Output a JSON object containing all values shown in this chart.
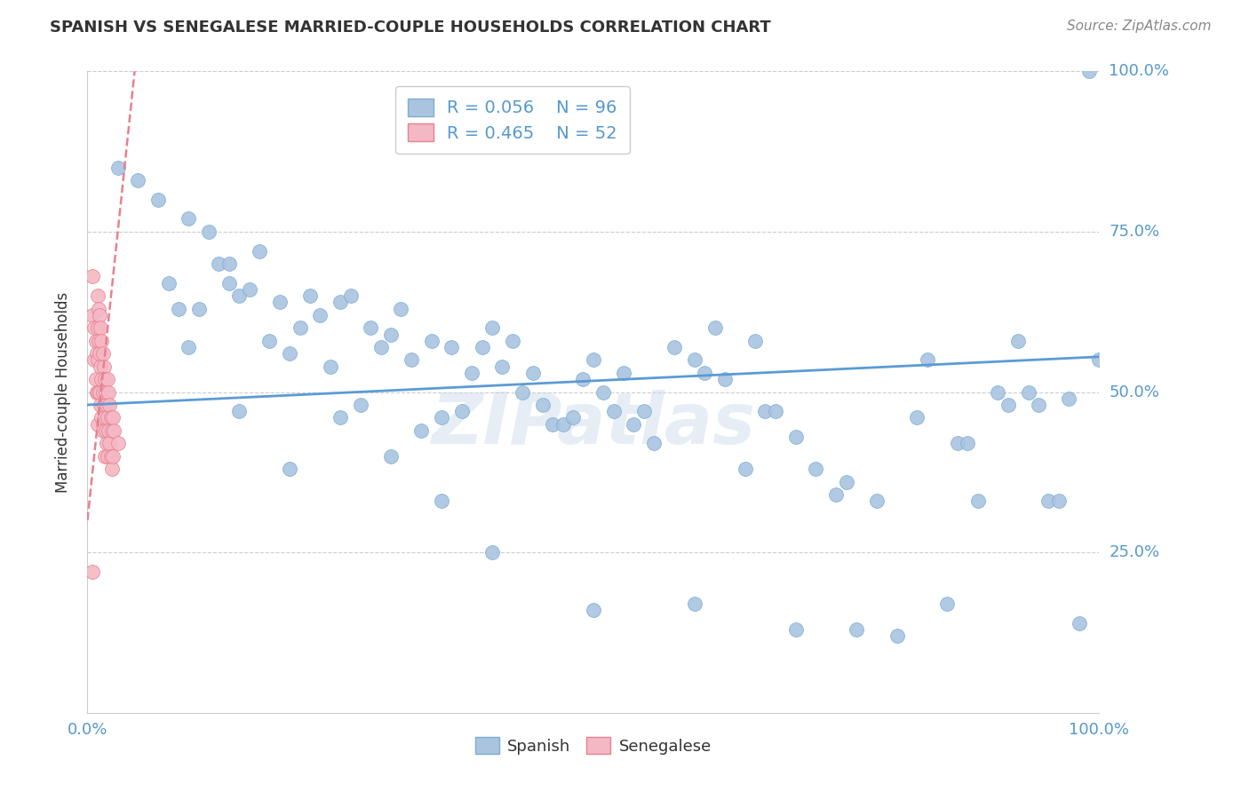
{
  "title": "SPANISH VS SENEGALESE MARRIED-COUPLE HOUSEHOLDS CORRELATION CHART",
  "source": "Source: ZipAtlas.com",
  "ylabel": "Married-couple Households",
  "xlim": [
    0.0,
    1.0
  ],
  "ylim": [
    0.0,
    1.0
  ],
  "spanish_R": "0.056",
  "spanish_N": "96",
  "senegalese_R": "0.465",
  "senegalese_N": "52",
  "spanish_color": "#aac4e0",
  "senegalese_color": "#f4b8c4",
  "spanish_edge_color": "#7aafd4",
  "senegalese_edge_color": "#e88090",
  "trendline_spanish_color": "#5b9bd5",
  "trendline_senegalese_color": "#e88090",
  "watermark": "ZIPatlas",
  "grid_color": "#cccccc",
  "title_color": "#333333",
  "source_color": "#888888",
  "tick_color": "#5599cc",
  "legend_edge_color": "#cccccc",
  "sp_x": [
    0.03,
    0.05,
    0.07,
    0.08,
    0.09,
    0.1,
    0.1,
    0.11,
    0.12,
    0.13,
    0.14,
    0.14,
    0.15,
    0.16,
    0.17,
    0.18,
    0.19,
    0.2,
    0.21,
    0.22,
    0.23,
    0.24,
    0.25,
    0.26,
    0.27,
    0.28,
    0.29,
    0.3,
    0.31,
    0.32,
    0.33,
    0.34,
    0.35,
    0.36,
    0.37,
    0.38,
    0.39,
    0.4,
    0.41,
    0.42,
    0.43,
    0.44,
    0.45,
    0.46,
    0.47,
    0.48,
    0.49,
    0.5,
    0.51,
    0.52,
    0.53,
    0.54,
    0.55,
    0.56,
    0.58,
    0.6,
    0.61,
    0.62,
    0.63,
    0.65,
    0.66,
    0.67,
    0.68,
    0.7,
    0.72,
    0.74,
    0.75,
    0.76,
    0.78,
    0.8,
    0.82,
    0.83,
    0.85,
    0.86,
    0.87,
    0.88,
    0.9,
    0.91,
    0.92,
    0.93,
    0.94,
    0.95,
    0.96,
    0.97,
    0.98,
    0.99,
    1.0,
    0.15,
    0.2,
    0.25,
    0.3,
    0.35,
    0.4,
    0.5,
    0.6,
    0.7
  ],
  "sp_y": [
    0.85,
    0.83,
    0.8,
    0.67,
    0.63,
    0.77,
    0.57,
    0.63,
    0.75,
    0.7,
    0.7,
    0.67,
    0.65,
    0.66,
    0.72,
    0.58,
    0.64,
    0.56,
    0.6,
    0.65,
    0.62,
    0.54,
    0.64,
    0.65,
    0.48,
    0.6,
    0.57,
    0.59,
    0.63,
    0.55,
    0.44,
    0.58,
    0.46,
    0.57,
    0.47,
    0.53,
    0.57,
    0.6,
    0.54,
    0.58,
    0.5,
    0.53,
    0.48,
    0.45,
    0.45,
    0.46,
    0.52,
    0.55,
    0.5,
    0.47,
    0.53,
    0.45,
    0.47,
    0.42,
    0.57,
    0.55,
    0.53,
    0.6,
    0.52,
    0.38,
    0.58,
    0.47,
    0.47,
    0.43,
    0.38,
    0.34,
    0.36,
    0.13,
    0.33,
    0.12,
    0.46,
    0.55,
    0.17,
    0.42,
    0.42,
    0.33,
    0.5,
    0.48,
    0.58,
    0.5,
    0.48,
    0.33,
    0.33,
    0.49,
    0.14,
    1.0,
    0.55,
    0.47,
    0.38,
    0.46,
    0.4,
    0.33,
    0.25,
    0.16,
    0.17,
    0.13
  ],
  "sn_x": [
    0.005,
    0.005,
    0.007,
    0.007,
    0.008,
    0.008,
    0.009,
    0.009,
    0.01,
    0.01,
    0.01,
    0.01,
    0.01,
    0.011,
    0.011,
    0.012,
    0.012,
    0.012,
    0.013,
    0.013,
    0.013,
    0.014,
    0.014,
    0.014,
    0.015,
    0.015,
    0.015,
    0.016,
    0.016,
    0.017,
    0.017,
    0.017,
    0.018,
    0.018,
    0.019,
    0.019,
    0.02,
    0.02,
    0.02,
    0.021,
    0.021,
    0.022,
    0.022,
    0.023,
    0.023,
    0.024,
    0.024,
    0.025,
    0.025,
    0.026,
    0.03,
    0.005
  ],
  "sn_y": [
    0.68,
    0.62,
    0.6,
    0.55,
    0.58,
    0.52,
    0.56,
    0.5,
    0.65,
    0.6,
    0.55,
    0.5,
    0.45,
    0.63,
    0.58,
    0.62,
    0.56,
    0.5,
    0.6,
    0.54,
    0.48,
    0.58,
    0.52,
    0.46,
    0.56,
    0.5,
    0.44,
    0.54,
    0.48,
    0.52,
    0.46,
    0.4,
    0.5,
    0.44,
    0.48,
    0.42,
    0.52,
    0.46,
    0.4,
    0.5,
    0.44,
    0.48,
    0.42,
    0.46,
    0.4,
    0.44,
    0.38,
    0.46,
    0.4,
    0.44,
    0.42,
    0.22
  ]
}
